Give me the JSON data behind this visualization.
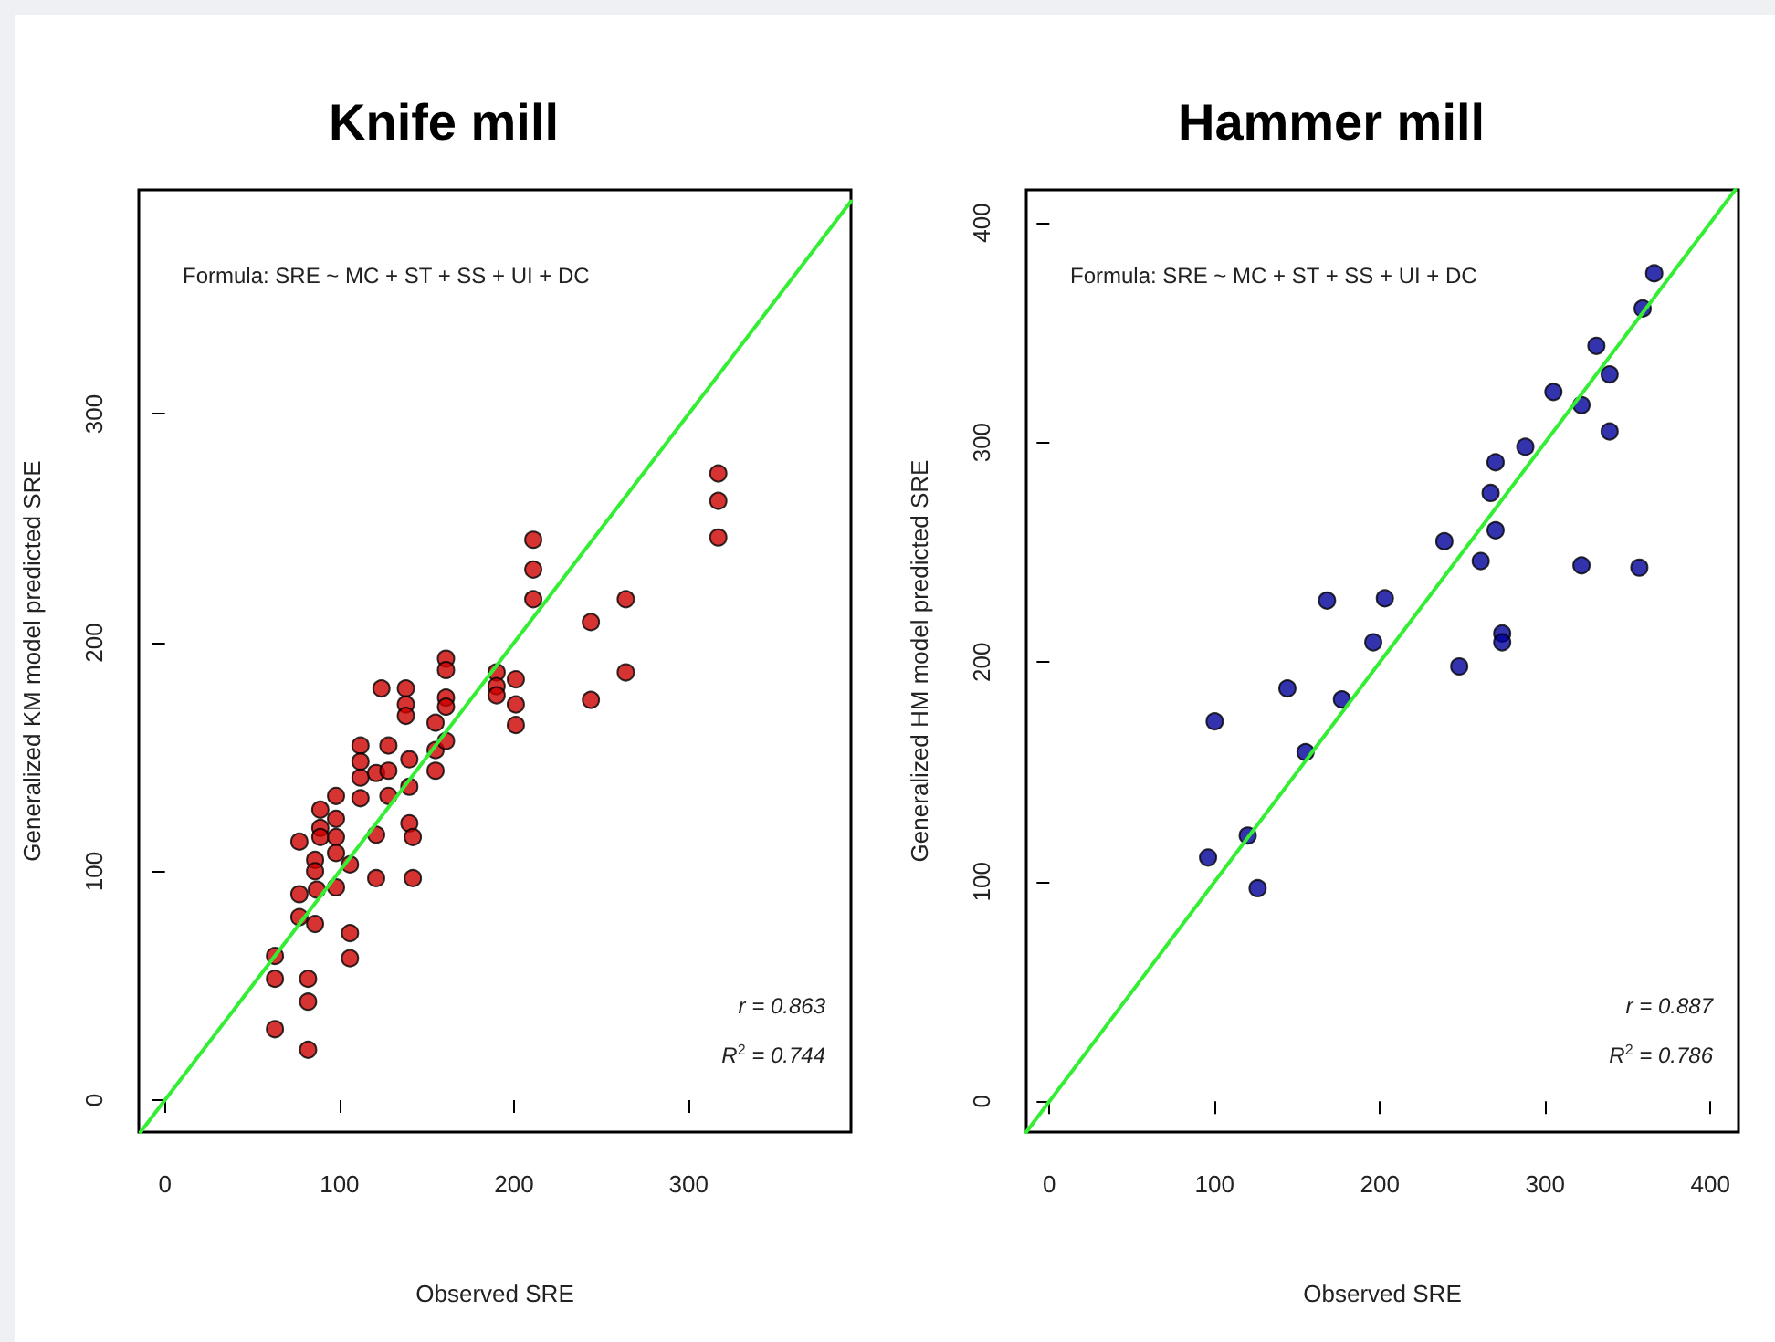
{
  "chart_data": [
    {
      "type": "scatter",
      "title": "Knife mill",
      "xlabel": "Observed SRE",
      "ylabel": "Generalized KM model predicted SRE",
      "xlim": [
        -15,
        393
      ],
      "ylim": [
        -14,
        398
      ],
      "xticks": [
        0,
        100,
        200,
        300
      ],
      "yticks": [
        0,
        100,
        200,
        300
      ],
      "grid": false,
      "marker": "circle",
      "annotations": [
        "Formula: SRE ~ MC + ST + SS + UI + DC",
        "r = 0.863",
        "R$^{2}$ = 0.744"
      ],
      "series": [
        {
          "color": "#cc0000",
          "x": [
            63,
            63,
            63,
            77,
            77,
            77,
            82,
            82,
            82,
            86,
            86,
            87,
            86,
            89,
            89,
            89,
            98,
            98,
            98,
            98,
            98,
            106,
            106,
            106,
            112,
            112,
            112,
            112,
            121,
            121,
            121,
            124,
            128,
            128,
            128,
            138,
            138,
            138,
            140,
            140,
            140,
            142,
            142,
            155,
            155,
            155,
            161,
            161,
            161,
            161,
            161,
            190,
            190,
            190,
            201,
            201,
            201,
            211,
            211,
            211,
            244,
            244,
            264,
            264,
            317,
            317,
            317
          ],
          "values": [
            63,
            53,
            31,
            113,
            90,
            80,
            53,
            43,
            22,
            105,
            100,
            92,
            77,
            127,
            119,
            115,
            133,
            123,
            115,
            108,
            93,
            103,
            73,
            62,
            155,
            148,
            141,
            132,
            143,
            116,
            97,
            180,
            155,
            144,
            133,
            180,
            173,
            168,
            149,
            137,
            121,
            115,
            97,
            165,
            153,
            144,
            193,
            188,
            176,
            172,
            157,
            187,
            181,
            177,
            184,
            173,
            164,
            245,
            232,
            219,
            209,
            175,
            219,
            187,
            274,
            262,
            246
          ]
        },
        {
          "type": "line",
          "color": "#33ee33",
          "marker": "none",
          "x": [
            -14,
            393
          ],
          "values": [
            -14,
            393
          ]
        }
      ]
    },
    {
      "type": "scatter",
      "title": "Hammer mill",
      "xlabel": "Observed SRE",
      "ylabel": "Generalized HM model predicted SRE",
      "xlim": [
        -14,
        417
      ],
      "ylim": [
        -14,
        415
      ],
      "xticks": [
        0,
        100,
        200,
        300,
        400
      ],
      "yticks": [
        0,
        100,
        200,
        300,
        400
      ],
      "grid": false,
      "marker": "circle",
      "annotations": [
        "Formula: SRE ~ MC + ST + SS + UI + DC",
        "r = 0.887",
        "R$^{2}$ = 0.786"
      ],
      "series": [
        {
          "color": "#000099",
          "x": [
            366,
            359,
            331,
            339,
            305,
            322,
            339,
            288,
            270,
            267,
            270,
            239,
            261,
            322,
            357,
            168,
            203,
            196,
            274,
            274,
            248,
            144,
            177,
            100,
            155,
            120,
            96,
            126
          ],
          "values": [
            377,
            361,
            344,
            331,
            323,
            317,
            305,
            298,
            291,
            277,
            260,
            255,
            246,
            244,
            243,
            228,
            229,
            209,
            213,
            209,
            198,
            188,
            183,
            173,
            159,
            121,
            111,
            97
          ]
        },
        {
          "type": "line",
          "color": "#33ee33",
          "marker": "none",
          "x": [
            -14,
            415
          ],
          "values": [
            -14,
            415
          ]
        }
      ]
    }
  ]
}
